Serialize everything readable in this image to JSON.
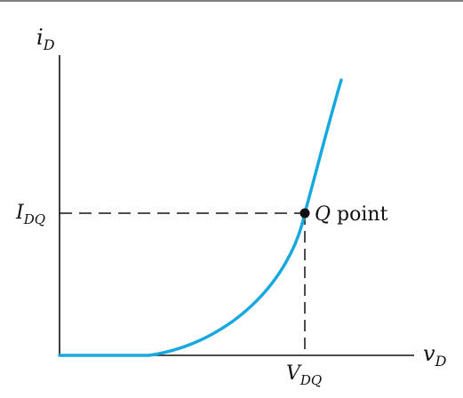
{
  "figure": {
    "axis_labels": {
      "y_main": "i",
      "y_sub": "D",
      "x_main": "v",
      "x_sub": "D"
    },
    "tick_labels": {
      "y_main": "I",
      "y_sub": "DQ",
      "x_main": "V",
      "x_sub": "DQ"
    },
    "q_point": {
      "italic": "Q",
      "text": " point"
    },
    "colors": {
      "axis": "#111111",
      "curve": "#18a8de",
      "dashed": "#111111",
      "point": "#111111"
    }
  }
}
